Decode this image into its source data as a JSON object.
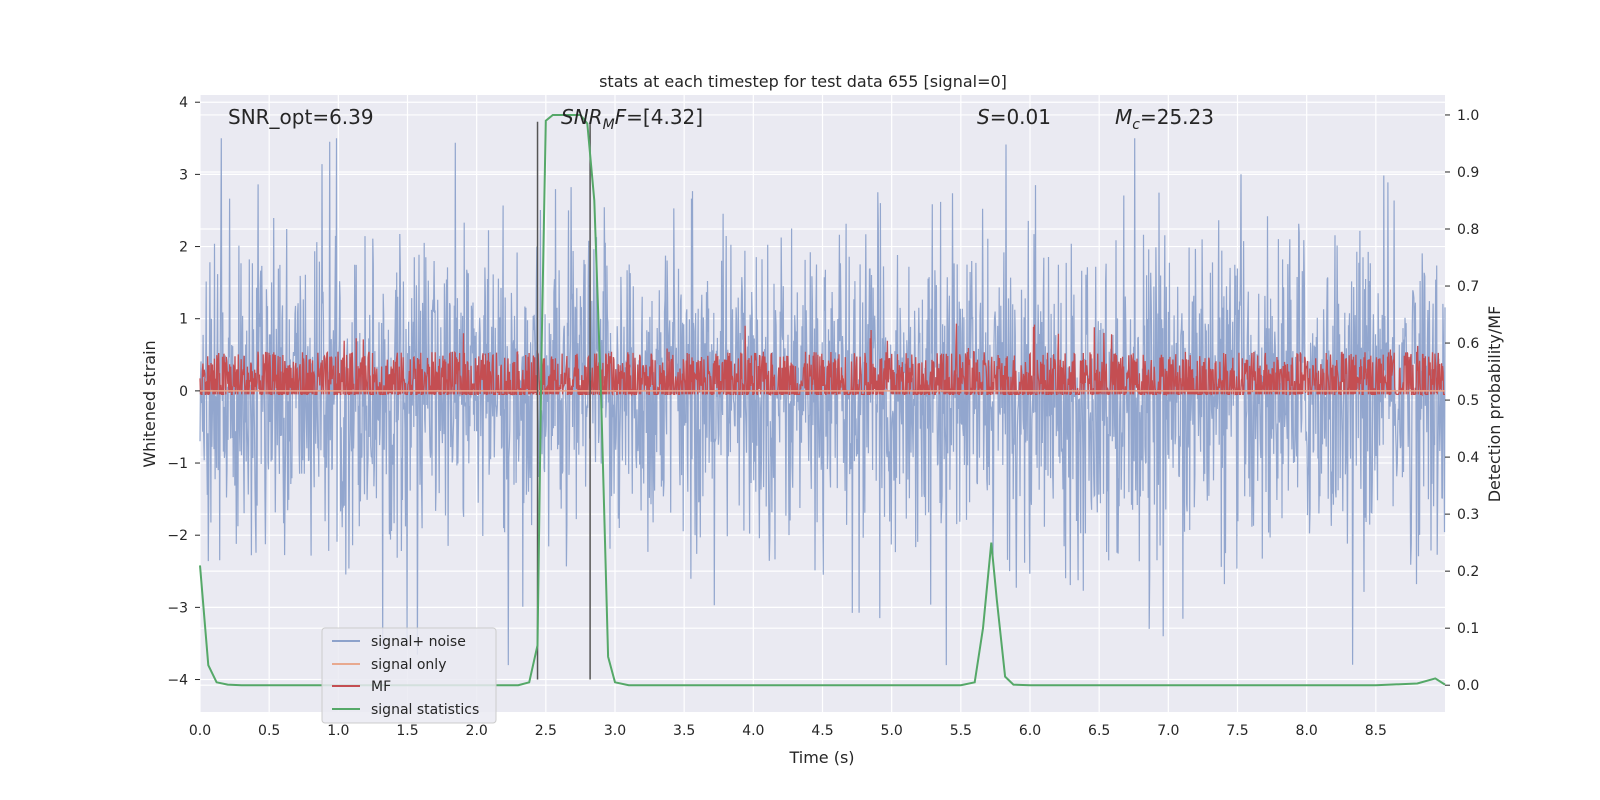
{
  "chart_data": {
    "type": "line",
    "title": "stats at each timestep for test data 655 [signal=0]",
    "xlabel": "Time (s)",
    "ylabel": "Whitened strain",
    "y2label": "Detection probability/MF",
    "xlim": [
      0,
      9.0
    ],
    "ylim": [
      -4.45,
      4.1
    ],
    "y2lim": [
      -0.047,
      1.035
    ],
    "xticks": [
      "0.0",
      "0.5",
      "1.0",
      "1.5",
      "2.0",
      "2.5",
      "3.0",
      "3.5",
      "4.0",
      "4.5",
      "5.0",
      "5.5",
      "6.0",
      "6.5",
      "7.0",
      "7.5",
      "8.0",
      "8.5"
    ],
    "yticks": [
      "−4",
      "−3",
      "−2",
      "−1",
      "0",
      "1",
      "2",
      "3",
      "4"
    ],
    "y2ticks": [
      "0.0",
      "0.1",
      "0.2",
      "0.3",
      "0.4",
      "0.5",
      "0.6",
      "0.7",
      "0.8",
      "0.9",
      "1.0"
    ],
    "grid": true,
    "legend_placement": "lower-left",
    "annotations": {
      "snr_opt": "SNR_opt=6.39",
      "snr_mf_italic": "SNR",
      "snr_mf_sub": "M",
      "snr_mf_rest": "F=[4.32]",
      "s_italic": "S",
      "s_rest": "=0.01",
      "mc_italic": "M",
      "mc_sub": "c",
      "mc_rest": "=25.23"
    },
    "vlines_x": [
      2.44,
      2.82
    ],
    "series": [
      {
        "name": "signal+ noise",
        "axis": "left",
        "color": "#8da2cb",
        "description_range": [
          -3.8,
          3.5
        ]
      },
      {
        "name": "signal only",
        "axis": "left",
        "color": "#e8a98f",
        "x": [
          0,
          9.0
        ],
        "y": [
          0,
          0
        ]
      },
      {
        "name": "MF",
        "axis": "left",
        "color": "#c44e52",
        "description_range": [
          0.0,
          1.0
        ]
      },
      {
        "name": "signal statistics",
        "axis": "right",
        "color": "#55a868",
        "x": [
          0.0,
          0.06,
          0.12,
          0.2,
          0.3,
          0.5,
          1.0,
          1.5,
          2.0,
          2.3,
          2.38,
          2.44,
          2.47,
          2.5,
          2.55,
          2.65,
          2.75,
          2.8,
          2.85,
          2.9,
          2.95,
          3.0,
          3.1,
          3.5,
          4.0,
          4.5,
          5.0,
          5.5,
          5.6,
          5.66,
          5.72,
          5.76,
          5.82,
          5.88,
          6.0,
          6.5,
          7.0,
          7.5,
          8.0,
          8.5,
          8.8,
          8.93,
          9.0
        ],
        "y": [
          0.21,
          0.035,
          0.005,
          0.001,
          0.0,
          0.0,
          0.0,
          0.0,
          0.0,
          0.0,
          0.005,
          0.07,
          0.6,
          0.99,
          1.0,
          1.0,
          1.0,
          0.985,
          0.85,
          0.5,
          0.05,
          0.005,
          0.0,
          0.0,
          0.0,
          0.0,
          0.0,
          0.0,
          0.005,
          0.1,
          0.25,
          0.15,
          0.015,
          0.001,
          0.0,
          0.0,
          0.0,
          0.0,
          0.0,
          0.0,
          0.003,
          0.012,
          0.001
        ]
      }
    ]
  }
}
